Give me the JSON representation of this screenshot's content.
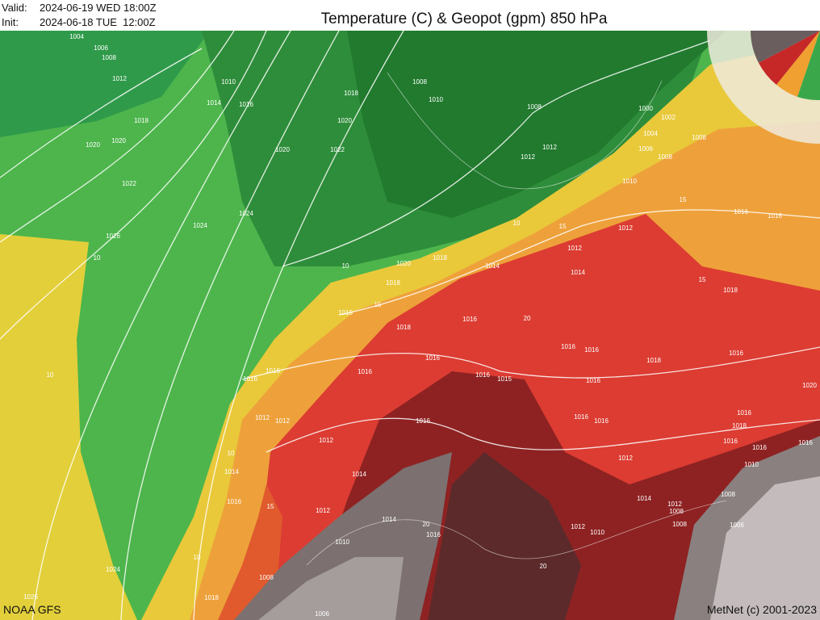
{
  "header": {
    "valid_label": "Valid:",
    "valid": "2024-06-19 WED 18:00Z",
    "init_label": "Init:",
    "init": "2024-06-18 TUE  12:00Z",
    "title": "Temperature (C) & Geopot (gpm) 850 hPa"
  },
  "footer": {
    "source": "NOAA GFS",
    "credit": "MetNet (c) 2001-2023"
  },
  "contour_labels": [
    "1004",
    "1006",
    "1008",
    "1012",
    "1010",
    "1014",
    "1016",
    "1018",
    "1008",
    "1010",
    "1008",
    "1018",
    "1020",
    "1020",
    "1020",
    "1020",
    "1022",
    "1022",
    "1024",
    "1024",
    "1026",
    "1012",
    "1012",
    "1000",
    "1002",
    "1004",
    "1006",
    "1008",
    "1008",
    "1010",
    "1016",
    "1016",
    "1012",
    "1012",
    "1014",
    "1014",
    "1020",
    "1018",
    "1018",
    "1018",
    "1016",
    "1018",
    "1016",
    "1016",
    "1016",
    "1016",
    "1018",
    "1016",
    "1016",
    "1016",
    "1016",
    "1016",
    "1015",
    "1016",
    "1016",
    "1020",
    "1012",
    "1012",
    "1016",
    "1016",
    "1016",
    "1012",
    "1018",
    "1016",
    "1016",
    "1014",
    "1016",
    "1014",
    "1012",
    "1010",
    "1016",
    "1008",
    "1014",
    "1012",
    "1008",
    "1012",
    "1014",
    "1008",
    "1012",
    "1010",
    "1016",
    "1006",
    "1010",
    "1008",
    "1018",
    "1006",
    "1024",
    "1026",
    "10",
    "15",
    "15",
    "20",
    "10",
    "15",
    "10",
    "15",
    "10",
    "15",
    "10",
    "20",
    "20",
    "10"
  ]
}
